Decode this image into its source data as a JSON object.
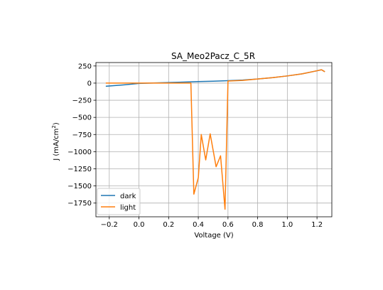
{
  "chart_data": {
    "type": "line",
    "title": "SA_Meo2Pacz_C_5R",
    "xlabel": "Voltage (V)",
    "ylabel_main": "J (mA/cm",
    "ylabel_sup": "2",
    "ylabel_close": ")",
    "xlim": [
      -0.29,
      1.3
    ],
    "ylim": [
      -1950,
      300
    ],
    "xticks": [
      {
        "value": -0.2,
        "label": "−0.2"
      },
      {
        "value": 0.0,
        "label": "0.0"
      },
      {
        "value": 0.2,
        "label": "0.2"
      },
      {
        "value": 0.4,
        "label": "0.4"
      },
      {
        "value": 0.6,
        "label": "0.6"
      },
      {
        "value": 0.8,
        "label": "0.8"
      },
      {
        "value": 1.0,
        "label": "1.0"
      },
      {
        "value": 1.2,
        "label": "1.2"
      }
    ],
    "yticks": [
      {
        "value": 250,
        "label": "250"
      },
      {
        "value": 0,
        "label": "0"
      },
      {
        "value": -250,
        "label": "−250"
      },
      {
        "value": -500,
        "label": "−500"
      },
      {
        "value": -750,
        "label": "−750"
      },
      {
        "value": -1000,
        "label": "−1000"
      },
      {
        "value": -1250,
        "label": "−1250"
      },
      {
        "value": -1500,
        "label": "−1500"
      },
      {
        "value": -1750,
        "label": "−1750"
      }
    ],
    "grid": true,
    "legend": "lower-left",
    "series": [
      {
        "name": "dark",
        "color": "#1f77b4",
        "x": [
          -0.22,
          -0.1,
          0.0,
          0.1,
          0.2,
          0.3,
          0.4,
          0.5,
          0.6,
          0.7,
          0.8,
          0.9,
          1.0,
          1.1,
          1.2,
          1.23,
          1.25
        ],
        "y": [
          -45,
          -25,
          -5,
          2,
          8,
          15,
          22,
          28,
          35,
          45,
          60,
          80,
          105,
          135,
          180,
          195,
          170
        ]
      },
      {
        "name": "light",
        "color": "#ff7f0e",
        "x": [
          -0.22,
          -0.1,
          0.0,
          0.1,
          0.2,
          0.3,
          0.35,
          0.37,
          0.4,
          0.42,
          0.45,
          0.48,
          0.52,
          0.55,
          0.58,
          0.6,
          0.7,
          0.8,
          0.9,
          1.0,
          1.1,
          1.2,
          1.23,
          1.25
        ],
        "y": [
          0,
          0,
          0,
          0,
          0,
          0,
          0,
          -1620,
          -1380,
          -750,
          -1120,
          -740,
          -1220,
          -1060,
          -1840,
          30,
          40,
          60,
          80,
          105,
          135,
          180,
          195,
          170
        ]
      }
    ]
  }
}
